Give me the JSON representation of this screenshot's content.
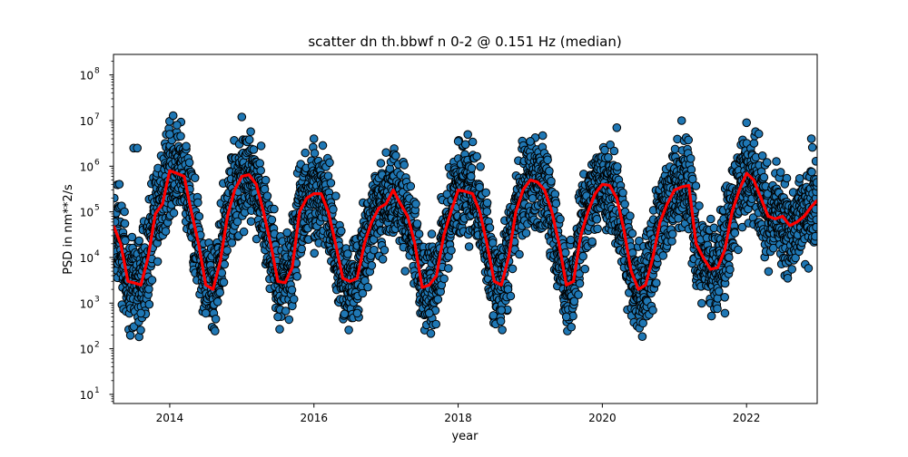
{
  "chart_data": {
    "type": "scatter",
    "title": "scatter dn th.bbwf n 0-2 @ 0.151 Hz (median)",
    "xlabel": "year",
    "ylabel": "PSD in nm**2/s",
    "xlim": [
      2013.22,
      2022.98
    ],
    "ylim_log10": [
      0.8,
      8.45
    ],
    "y_scale": "log",
    "grid": false,
    "legend": "none",
    "x_ticks": [
      2014,
      2016,
      2018,
      2020,
      2022
    ],
    "x_tick_labels": [
      "2014",
      "2016",
      "2018",
      "2020",
      "2022"
    ],
    "y_ticks_log10": [
      1,
      2,
      3,
      4,
      5,
      6,
      7,
      8
    ],
    "y_tick_labels": [
      "10",
      "10",
      "10",
      "10",
      "10",
      "10",
      "10",
      "10"
    ],
    "y_tick_exponents": [
      "1",
      "2",
      "3",
      "4",
      "5",
      "6",
      "7",
      "8"
    ],
    "scatter_color": "#1f77b4",
    "scatter_edge_color": "#000000",
    "median_line_color": "#ff0000",
    "median_line": {
      "x": [
        2013.22,
        2013.32,
        2013.42,
        2013.5,
        2013.6,
        2013.7,
        2013.8,
        2013.9,
        2014.0,
        2014.1,
        2014.2,
        2014.3,
        2014.4,
        2014.5,
        2014.6,
        2014.7,
        2014.8,
        2014.9,
        2015.0,
        2015.1,
        2015.2,
        2015.3,
        2015.4,
        2015.5,
        2015.6,
        2015.7,
        2015.8,
        2015.9,
        2016.0,
        2016.1,
        2016.2,
        2016.3,
        2016.4,
        2016.5,
        2016.6,
        2016.7,
        2016.8,
        2016.9,
        2017.0,
        2017.1,
        2017.2,
        2017.3,
        2017.4,
        2017.5,
        2017.6,
        2017.7,
        2017.8,
        2017.9,
        2018.0,
        2018.1,
        2018.2,
        2018.3,
        2018.4,
        2018.5,
        2018.6,
        2018.7,
        2018.8,
        2018.9,
        2019.0,
        2019.1,
        2019.2,
        2019.3,
        2019.4,
        2019.5,
        2019.6,
        2019.7,
        2019.8,
        2019.9,
        2020.0,
        2020.1,
        2020.2,
        2020.3,
        2020.4,
        2020.5,
        2020.6,
        2020.7,
        2020.8,
        2020.9,
        2021.0,
        2021.1,
        2021.2,
        2021.3,
        2021.4,
        2021.5,
        2021.6,
        2021.7,
        2021.8,
        2021.9,
        2022.0,
        2022.1,
        2022.2,
        2022.3,
        2022.4,
        2022.5,
        2022.6,
        2022.7,
        2022.8,
        2022.9,
        2022.98
      ],
      "y": [
        50000,
        20000,
        3000,
        2800,
        2500,
        10000,
        90000,
        150000,
        800000,
        700000,
        600000,
        100000,
        20000,
        2500,
        2000,
        8000,
        80000,
        300000,
        600000,
        650000,
        400000,
        100000,
        20000,
        3000,
        2800,
        6000,
        100000,
        200000,
        250000,
        250000,
        100000,
        20000,
        3500,
        3000,
        3500,
        20000,
        60000,
        120000,
        150000,
        300000,
        150000,
        80000,
        20000,
        2200,
        2500,
        4000,
        30000,
        100000,
        300000,
        280000,
        250000,
        100000,
        20000,
        3000,
        2500,
        10000,
        100000,
        300000,
        500000,
        450000,
        300000,
        100000,
        20000,
        2500,
        3000,
        30000,
        100000,
        250000,
        400000,
        380000,
        200000,
        40000,
        5000,
        2000,
        2500,
        10000,
        60000,
        150000,
        300000,
        350000,
        380000,
        20000,
        10000,
        5500,
        6000,
        15000,
        100000,
        300000,
        700000,
        500000,
        200000,
        80000,
        70000,
        80000,
        50000,
        60000,
        80000,
        130000,
        180000
      ]
    },
    "scatter_note_values_are_visual": [
      {
        "x": 2013.23,
        "y": 200000
      },
      {
        "x": 2013.24,
        "y": 60000
      },
      {
        "x": 2013.5,
        "y": 2500000
      },
      {
        "x": 2013.55,
        "y": 2500000
      },
      {
        "x": 2013.6,
        "y": 600
      },
      {
        "x": 2014.0,
        "y": 5000000
      },
      {
        "x": 2014.1,
        "y": 8000000
      },
      {
        "x": 2014.5,
        "y": 600
      },
      {
        "x": 2015.0,
        "y": 12000000
      },
      {
        "x": 2015.5,
        "y": 500
      },
      {
        "x": 2016.0,
        "y": 4000000
      },
      {
        "x": 2016.6,
        "y": 600
      },
      {
        "x": 2017.0,
        "y": 2000000
      },
      {
        "x": 2017.6,
        "y": 600
      },
      {
        "x": 2018.0,
        "y": 3500000
      },
      {
        "x": 2018.6,
        "y": 700
      },
      {
        "x": 2019.0,
        "y": 3500000
      },
      {
        "x": 2019.5,
        "y": 500
      },
      {
        "x": 2020.2,
        "y": 7000000
      },
      {
        "x": 2020.7,
        "y": 700
      },
      {
        "x": 2021.1,
        "y": 10000000
      },
      {
        "x": 2021.7,
        "y": 600
      },
      {
        "x": 2022.0,
        "y": 9000000
      },
      {
        "x": 2022.9,
        "y": 4000000
      }
    ]
  }
}
